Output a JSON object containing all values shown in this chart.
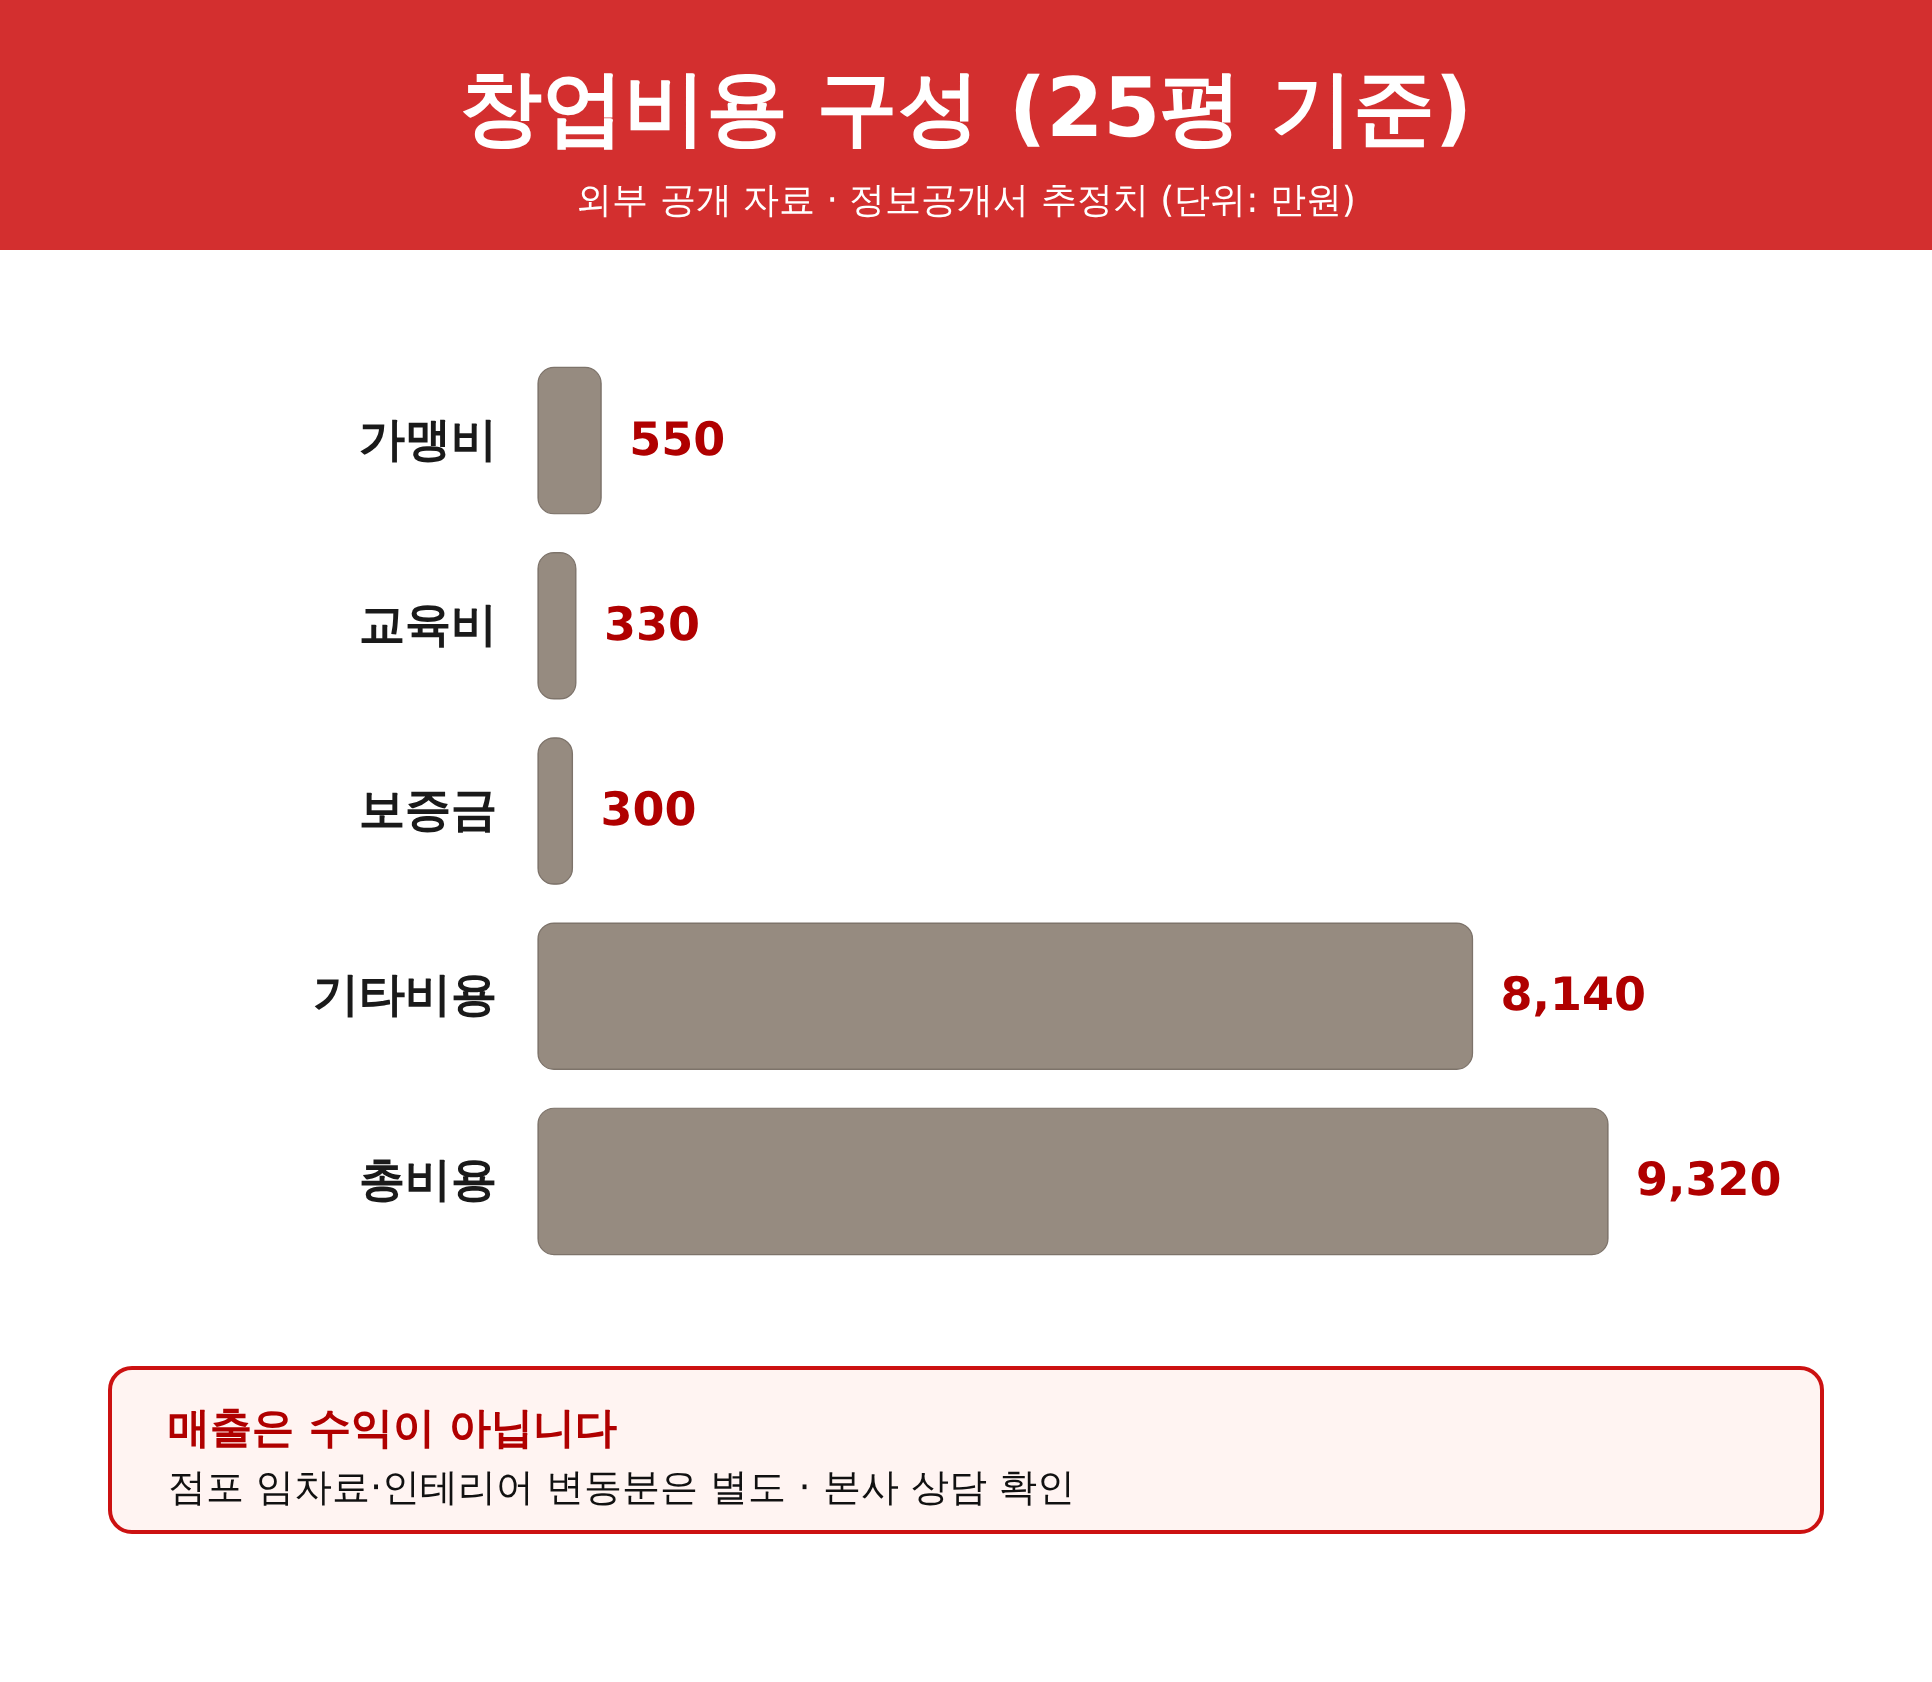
{
  "chart_data": {
    "type": "bar",
    "orientation": "horizontal",
    "title": "창업비용 구성 (25평 기준)",
    "subtitle": "외부 공개 자료 · 정보공개서 추정치 (단위: 만원)",
    "categories": [
      "가맹비",
      "교육비",
      "보증금",
      "기타비용",
      "총비용"
    ],
    "values": [
      550,
      330,
      300,
      8140,
      9320
    ],
    "value_labels": [
      "550",
      "330",
      "300",
      "8,140",
      "9,320"
    ],
    "color": "#968b80",
    "annotations": [
      "매출은 수익이 아닙니다",
      "점포 임차료·인테리어 변동분은 별도 · 본사 상담 확인"
    ]
  }
}
